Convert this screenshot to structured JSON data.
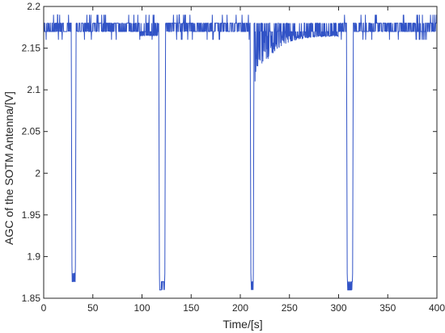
{
  "chart_data": {
    "type": "line",
    "title": "",
    "xlabel": "Time/[s]",
    "ylabel": "AGC of the SOTM Antenna/[V]",
    "xlim": [
      0,
      400
    ],
    "ylim": [
      1.85,
      2.2
    ],
    "xticks": [
      "0",
      "50",
      "100",
      "150",
      "200",
      "250",
      "300",
      "350",
      "400"
    ],
    "yticks": [
      "1.85",
      "1.9",
      "1.95",
      "2",
      "2.05",
      "2.1",
      "2.15",
      "2.2"
    ],
    "grid": false,
    "line_color": "#3153c6",
    "baseline_levels": [
      2.17,
      2.18
    ],
    "dips": [
      {
        "start": 28,
        "end": 33,
        "min": 1.87
      },
      {
        "start": 117,
        "end": 124,
        "min": 1.86
      },
      {
        "start": 210,
        "end": 214,
        "min": 1.86
      },
      {
        "start": 308,
        "end": 315,
        "min": 1.86
      }
    ],
    "recovery_after_third_dip": {
      "start": 214,
      "end": 300,
      "min": 2.1,
      "settles_to": 2.17
    }
  }
}
